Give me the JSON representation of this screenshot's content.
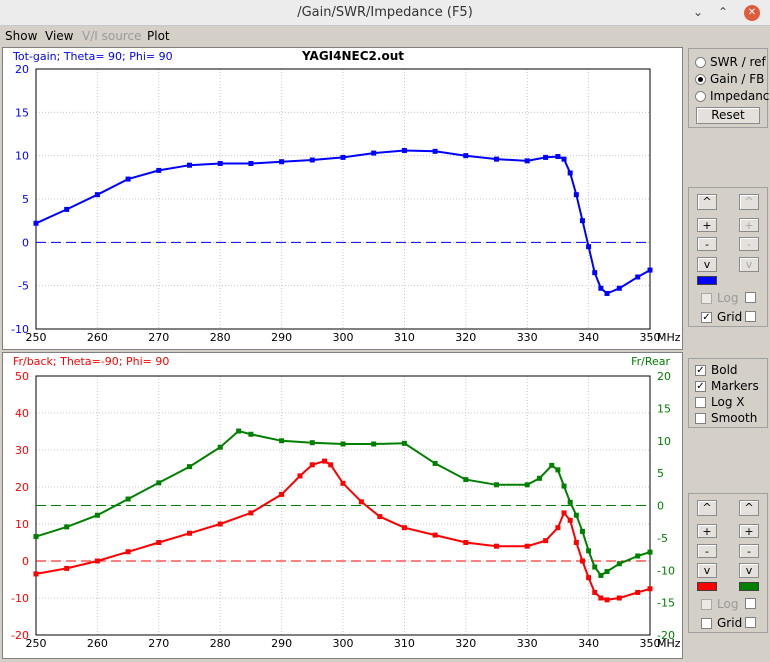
{
  "window": {
    "title": "/Gain/SWR/Impedance (F5)"
  },
  "menu": [
    {
      "label": "Show",
      "disabled": false
    },
    {
      "label": "View",
      "disabled": false
    },
    {
      "label": "V/I source",
      "disabled": true
    },
    {
      "label": "Plot",
      "disabled": false
    }
  ],
  "colors": {
    "gain": "#0000ff",
    "frback": "#ff0000",
    "frrear": "#008000"
  },
  "mode_panel": {
    "options": [
      "SWR / ref",
      "Gain / FB",
      "Impedance"
    ],
    "selected": 1,
    "reset_label": "Reset"
  },
  "scale_controls": {
    "up": "^",
    "plus": "+",
    "minus": "-",
    "down": "v",
    "log_label": "Log",
    "grid_label": "Grid"
  },
  "display_options": [
    {
      "label": "Bold",
      "checked": true
    },
    {
      "label": "Markers",
      "checked": true
    },
    {
      "label": "Log X",
      "checked": false
    },
    {
      "label": "Smooth",
      "checked": false
    }
  ],
  "chart_data": [
    {
      "type": "line",
      "title": "YAGI4NEC2.out",
      "label": "Tot-gain; Theta= 90; Phi= 90",
      "xunit": "MHz",
      "xlim": [
        250,
        350
      ],
      "ylim": [
        -10,
        20
      ],
      "xticks": [
        250,
        260,
        270,
        280,
        290,
        300,
        310,
        320,
        330,
        340,
        350
      ],
      "yticks": [
        20,
        15,
        10,
        5,
        0,
        -5,
        -10
      ],
      "grid": true,
      "zero_line": 0,
      "series": [
        {
          "color": "#0000ff",
          "x": [
            250,
            255,
            260,
            265,
            270,
            275,
            280,
            285,
            290,
            295,
            300,
            305,
            310,
            315,
            320,
            325,
            330,
            333,
            335,
            336,
            337,
            338,
            339,
            340,
            341,
            342,
            343,
            345,
            348,
            350
          ],
          "y": [
            2.2,
            3.8,
            5.5,
            7.3,
            8.3,
            8.9,
            9.1,
            9.1,
            9.3,
            9.5,
            9.8,
            10.3,
            10.6,
            10.5,
            10.0,
            9.6,
            9.4,
            9.8,
            9.9,
            9.6,
            8.0,
            5.5,
            2.5,
            -0.5,
            -3.5,
            -5.3,
            -5.9,
            -5.3,
            -4.0,
            -3.2
          ]
        }
      ]
    },
    {
      "type": "line",
      "label": "Fr/back; Theta=-90; Phi= 90",
      "right_label": "Fr/Rear",
      "xunit": "MHz",
      "xlim": [
        250,
        350
      ],
      "ylim": [
        -20,
        50
      ],
      "y2lim": [
        -20,
        20
      ],
      "xticks": [
        250,
        260,
        270,
        280,
        290,
        300,
        310,
        320,
        330,
        340,
        350
      ],
      "yticks": [
        50,
        40,
        30,
        20,
        10,
        0,
        -10,
        -20
      ],
      "y2ticks": [
        20,
        15,
        10,
        5,
        0,
        -5,
        -10,
        -15,
        -20
      ],
      "grid": true,
      "zero_line": 0,
      "zero_line2": 0,
      "series": [
        {
          "color": "#ff0000",
          "axis": "left",
          "x": [
            250,
            255,
            260,
            265,
            270,
            275,
            280,
            285,
            290,
            293,
            295,
            297,
            298,
            300,
            303,
            306,
            310,
            315,
            320,
            325,
            330,
            333,
            335,
            336,
            337,
            338,
            339,
            340,
            341,
            342,
            343,
            345,
            348,
            350
          ],
          "y": [
            -3.5,
            -2.0,
            0,
            2.5,
            5.0,
            7.5,
            10,
            13,
            18,
            23,
            26,
            27,
            26,
            21,
            16,
            12,
            9,
            7,
            5,
            4,
            4,
            5.5,
            9,
            13,
            11,
            5,
            0,
            -4.5,
            -8.5,
            -10,
            -10.5,
            -10,
            -8.5,
            -7.5
          ]
        },
        {
          "color": "#008000",
          "axis": "right",
          "x": [
            250,
            255,
            260,
            265,
            270,
            275,
            280,
            283,
            285,
            290,
            295,
            300,
            305,
            310,
            315,
            320,
            325,
            330,
            332,
            334,
            335,
            336,
            337,
            338,
            339,
            340,
            341,
            342,
            343,
            345,
            348,
            350
          ],
          "y": [
            -4.8,
            -3.3,
            -1.5,
            1.0,
            3.5,
            6.0,
            9.0,
            11.5,
            11.0,
            10.0,
            9.7,
            9.5,
            9.5,
            9.6,
            6.5,
            4.0,
            3.2,
            3.2,
            4.2,
            6.2,
            5.5,
            3.0,
            0.5,
            -1.5,
            -4.0,
            -7.0,
            -9.5,
            -10.8,
            -10.2,
            -9.0,
            -7.8,
            -7.2
          ]
        }
      ]
    }
  ]
}
